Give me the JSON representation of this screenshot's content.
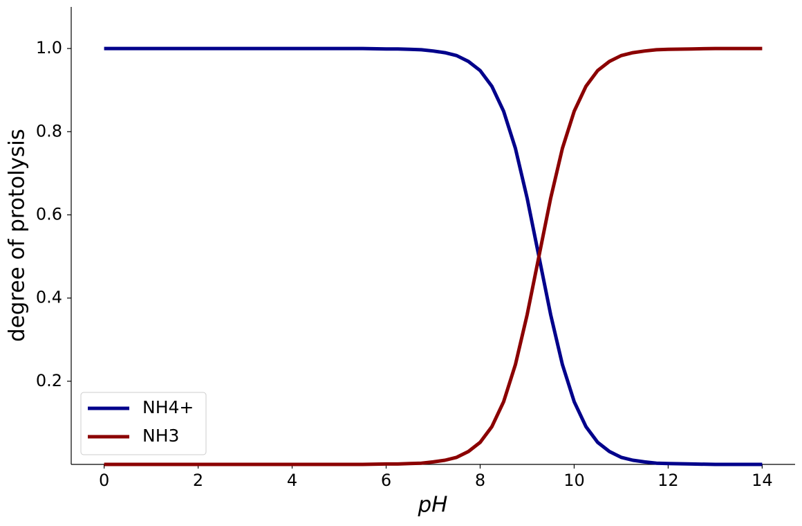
{
  "chart_data": {
    "type": "line",
    "x_label": "pH",
    "y_label": "degree of protolysis",
    "x": [
      0,
      0.5,
      1,
      1.5,
      2,
      2.5,
      3,
      3.5,
      4,
      4.5,
      5,
      5.5,
      6,
      6.25,
      6.5,
      6.75,
      7,
      7.25,
      7.5,
      7.75,
      8,
      8.25,
      8.5,
      8.75,
      9,
      9.25,
      9.5,
      9.75,
      10,
      10.25,
      10.5,
      10.75,
      11,
      11.25,
      11.5,
      11.75,
      12,
      12.5,
      13,
      13.5,
      14
    ],
    "series": [
      {
        "name": "NH4+",
        "color": "#00008b",
        "values": [
          1,
          1,
          1,
          1,
          1,
          1,
          1,
          1,
          1,
          1,
          1,
          1,
          0.999,
          0.999,
          0.998,
          0.997,
          0.994,
          0.99,
          0.983,
          0.969,
          0.947,
          0.909,
          0.849,
          0.76,
          0.64,
          0.5,
          0.36,
          0.24,
          0.151,
          0.091,
          0.053,
          0.031,
          0.017,
          0.01,
          0.006,
          0.003,
          0.002,
          0.001,
          0,
          0,
          0
        ]
      },
      {
        "name": "NH3",
        "color": "#8b0000",
        "values": [
          0,
          0,
          0,
          0,
          0,
          0,
          0,
          0,
          0,
          0,
          0,
          0,
          0.001,
          0.001,
          0.002,
          0.003,
          0.006,
          0.01,
          0.017,
          0.031,
          0.053,
          0.091,
          0.151,
          0.24,
          0.36,
          0.5,
          0.64,
          0.76,
          0.849,
          0.909,
          0.947,
          0.969,
          0.983,
          0.99,
          0.994,
          0.997,
          0.998,
          0.999,
          1,
          1,
          1
        ]
      }
    ],
    "xlim": [
      -0.7,
      14.7
    ],
    "ylim": [
      0,
      1.1
    ],
    "xticks": [
      0,
      2,
      4,
      6,
      8,
      10,
      12,
      14
    ],
    "yticks": [
      0.2,
      0.4,
      0.6,
      0.8,
      {
        "value": 1,
        "label": "1.0"
      }
    ],
    "grid": false,
    "legend": "lower left"
  }
}
